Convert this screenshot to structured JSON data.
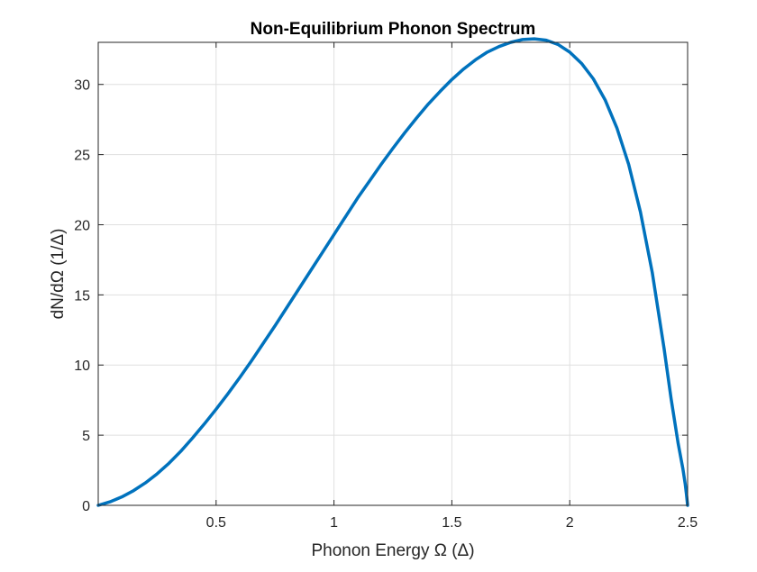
{
  "chart_data": {
    "type": "line",
    "title": "Non-Equilibrium Phonon Spectrum",
    "xlabel": "Phonon Energy Ω (Δ)",
    "ylabel": "dN/dΩ (1/Δ)",
    "xlim": [
      0,
      2.5
    ],
    "ylim": [
      0,
      33
    ],
    "xticks": [
      0.5,
      1,
      1.5,
      2,
      2.5
    ],
    "xtick_labels": [
      "0.5",
      "1",
      "1.5",
      "2",
      "2.5"
    ],
    "yticks": [
      0,
      5,
      10,
      15,
      20,
      25,
      30
    ],
    "ytick_labels": [
      "0",
      "5",
      "10",
      "15",
      "20",
      "25",
      "30"
    ],
    "grid": true,
    "series": [
      {
        "color": "#0072BD",
        "x": [
          0,
          0.05,
          0.1,
          0.15,
          0.2,
          0.25,
          0.3,
          0.35,
          0.4,
          0.45,
          0.5,
          0.55,
          0.6,
          0.65,
          0.7,
          0.75,
          0.8,
          0.85,
          0.9,
          0.95,
          1.0,
          1.05,
          1.1,
          1.15,
          1.2,
          1.25,
          1.3,
          1.35,
          1.4,
          1.45,
          1.5,
          1.55,
          1.6,
          1.65,
          1.7,
          1.75,
          1.8,
          1.85,
          1.9,
          1.95,
          2.0,
          2.05,
          2.1,
          2.15,
          2.2,
          2.25,
          2.3,
          2.35,
          2.4,
          2.43,
          2.46,
          2.48,
          2.49,
          2.495,
          2.5
        ],
        "y": [
          0,
          0.25,
          0.6,
          1.05,
          1.6,
          2.25,
          3.0,
          3.85,
          4.8,
          5.8,
          6.85,
          7.95,
          9.1,
          10.3,
          11.55,
          12.8,
          14.1,
          15.4,
          16.7,
          18.0,
          19.3,
          20.6,
          21.9,
          23.1,
          24.3,
          25.45,
          26.55,
          27.6,
          28.6,
          29.5,
          30.35,
          31.1,
          31.75,
          32.3,
          32.7,
          33.0,
          33.2,
          33.25,
          33.15,
          32.85,
          32.3,
          31.5,
          30.4,
          28.9,
          26.9,
          24.3,
          20.9,
          16.6,
          11.2,
          7.6,
          4.4,
          2.6,
          1.5,
          0.8,
          0
        ]
      }
    ]
  }
}
